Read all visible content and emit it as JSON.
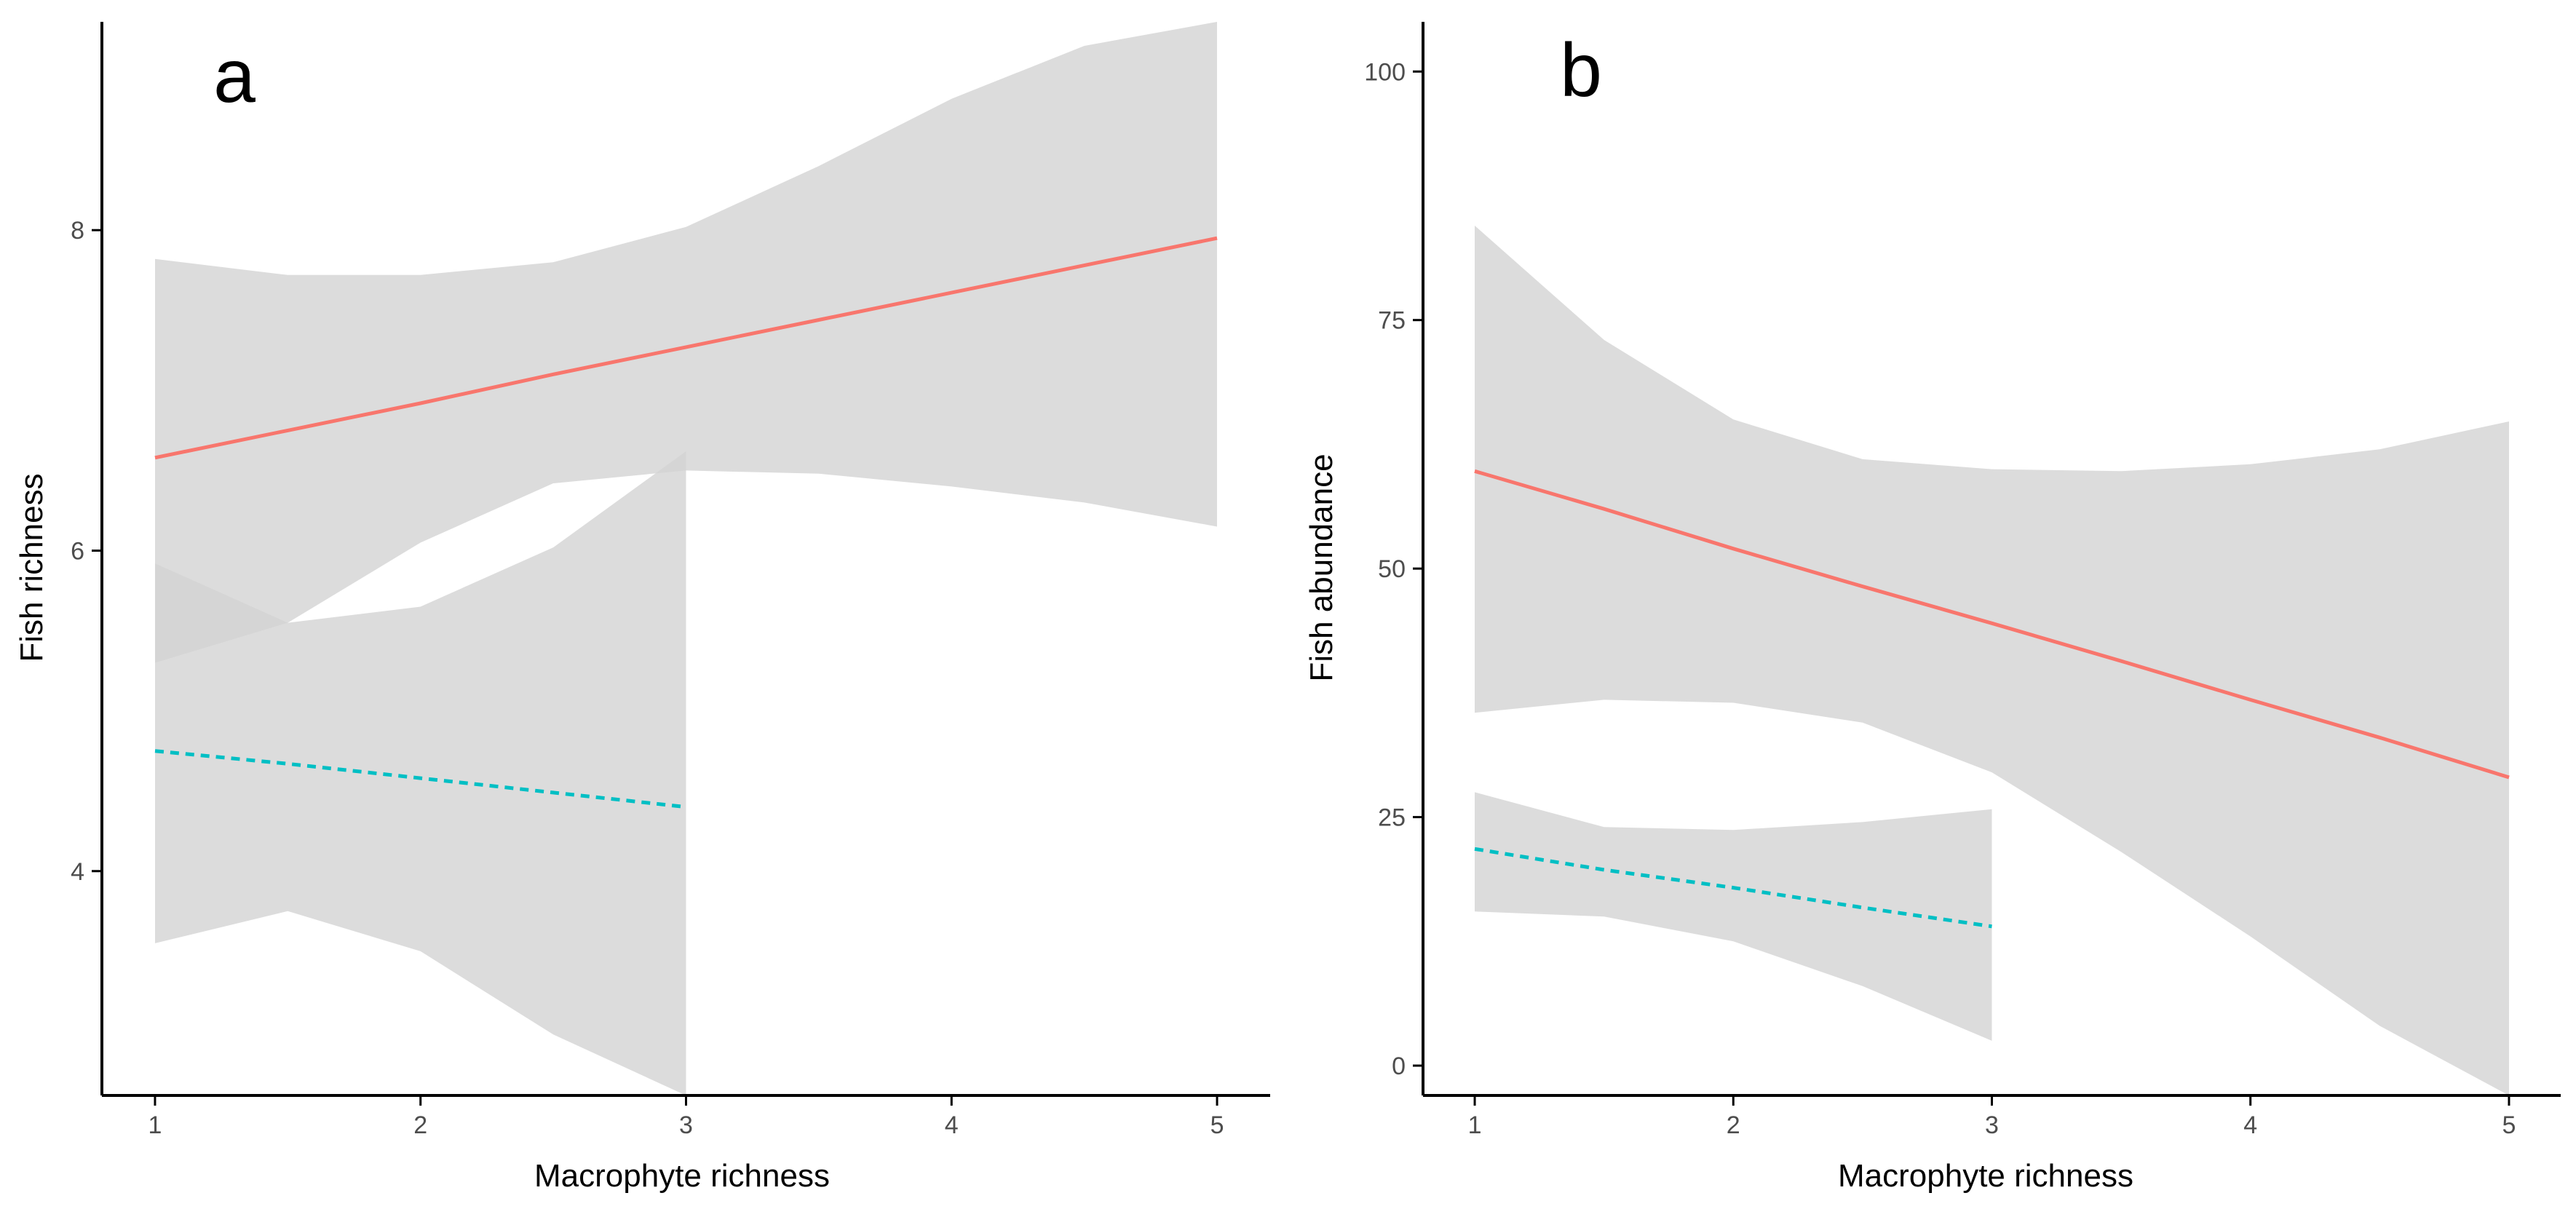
{
  "colors": {
    "ribbon": "#d3d3d3",
    "ribbon_overlap": "#b9b9b9",
    "series_solid": "#f8766d",
    "series_dashed": "#00bfc4",
    "axis": "#000000",
    "tick_text": "#4d4d4d"
  },
  "chart_data": [
    {
      "panel_label": "a",
      "type": "line",
      "xlabel": "Macrophyte richness",
      "ylabel": "Fish richness",
      "xlim": [
        0.8,
        5.2
      ],
      "ylim": [
        2.6,
        9.3
      ],
      "xticks": [
        1,
        2,
        3,
        4,
        5
      ],
      "yticks": [
        4,
        6,
        8
      ],
      "grid": false,
      "series": [
        {
          "name": "group-solid",
          "style": "solid",
          "x": [
            1,
            1.5,
            2,
            2.5,
            3,
            3.5,
            4,
            4.5,
            5
          ],
          "y": [
            6.58,
            6.75,
            6.92,
            7.1,
            7.27,
            7.44,
            7.61,
            7.78,
            7.95
          ],
          "lower": [
            5.3,
            5.55,
            6.05,
            6.42,
            6.5,
            6.48,
            6.4,
            6.3,
            6.15
          ],
          "upper": [
            7.82,
            7.72,
            7.72,
            7.8,
            8.02,
            8.4,
            8.82,
            9.15,
            9.3
          ]
        },
        {
          "name": "group-dashed",
          "style": "dashed",
          "x": [
            1,
            1.5,
            2,
            2.5,
            3
          ],
          "y": [
            4.75,
            4.67,
            4.58,
            4.49,
            4.4
          ],
          "lower": [
            3.55,
            3.75,
            3.5,
            2.98,
            2.6
          ],
          "upper": [
            5.92,
            5.55,
            5.65,
            6.02,
            6.62
          ]
        }
      ]
    },
    {
      "panel_label": "b",
      "type": "line",
      "xlabel": "Macrophyte richness",
      "ylabel": "Fish abundance",
      "xlim": [
        0.8,
        5.2
      ],
      "ylim": [
        -3,
        105
      ],
      "xticks": [
        1,
        2,
        3,
        4,
        5
      ],
      "yticks": [
        0,
        25,
        50,
        75,
        100
      ],
      "grid": false,
      "series": [
        {
          "name": "group-solid",
          "style": "solid",
          "x": [
            1,
            1.5,
            2,
            2.5,
            3,
            3.5,
            4,
            4.5,
            5
          ],
          "y": [
            59.8,
            56,
            52,
            48.2,
            44.5,
            40.7,
            36.8,
            33,
            29
          ],
          "lower": [
            35.5,
            36.8,
            36.5,
            34.5,
            29.5,
            21.5,
            13,
            4,
            -4
          ],
          "upper": [
            84.5,
            73,
            65,
            61,
            60,
            59.8,
            60.5,
            62,
            64.8
          ]
        },
        {
          "name": "group-dashed",
          "style": "dashed",
          "x": [
            1,
            1.5,
            2,
            2.5,
            3
          ],
          "y": [
            21.8,
            19.7,
            17.9,
            15.9,
            14
          ],
          "lower": [
            15.5,
            15,
            12.5,
            8,
            2.5
          ],
          "upper": [
            27.5,
            24,
            23.7,
            24.5,
            25.8
          ]
        }
      ]
    }
  ]
}
